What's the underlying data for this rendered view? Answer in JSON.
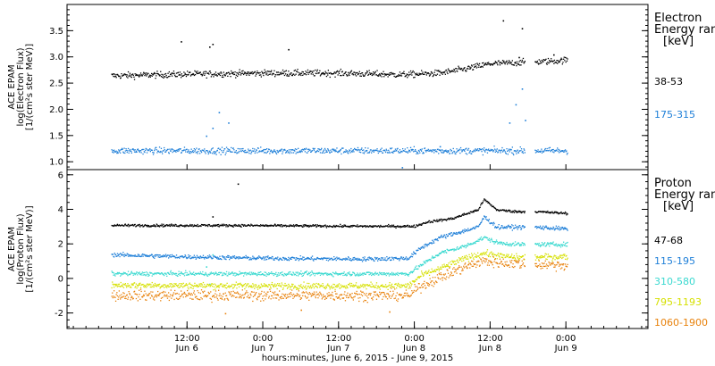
{
  "chart_data": [
    {
      "type": "scatter",
      "panel": "electron",
      "ylabel_lines": [
        "ACE EPAM",
        "log(Electron Flux)",
        "[1/(cm²s ster MeV)]"
      ],
      "ylim": [
        0.85,
        4.0
      ],
      "yticks": [
        1.0,
        1.5,
        2.0,
        2.5,
        3.0,
        3.5
      ],
      "ytick_labels": [
        "1.0",
        "1.5",
        "2.0",
        "2.5",
        "3.0",
        "3.5"
      ],
      "legend": {
        "title_lines": [
          "Electron",
          "Energy ranges",
          "[keV]"
        ],
        "placement": "right"
      },
      "gap_hours": [
        [
          65.5,
          67.0
        ]
      ],
      "series": [
        {
          "name": "38-53",
          "color": "#000000",
          "profile": [
            [
              0,
              2.65
            ],
            [
              12,
              2.68
            ],
            [
              24,
              2.7
            ],
            [
              36,
              2.7
            ],
            [
              46,
              2.67
            ],
            [
              52,
              2.7
            ],
            [
              56,
              2.78
            ],
            [
              60,
              2.88
            ],
            [
              64,
              2.9
            ],
            [
              70,
              2.93
            ],
            [
              72,
              2.95
            ]
          ],
          "noise": 0.05,
          "outliers": [
            [
              11,
              3.3
            ],
            [
              15.5,
              3.2
            ],
            [
              16,
              3.25
            ],
            [
              28,
              3.15
            ],
            [
              62,
              3.7
            ],
            [
              65,
              3.55
            ],
            [
              64.5,
              3.0
            ],
            [
              70,
              3.05
            ]
          ]
        },
        {
          "name": "175-315",
          "color": "#1e7fd8",
          "profile": [
            [
              0,
              1.22
            ],
            [
              24,
              1.22
            ],
            [
              48,
              1.22
            ],
            [
              72,
              1.22
            ]
          ],
          "noise": 0.05,
          "outliers": [
            [
              15,
              1.5
            ],
            [
              16,
              1.65
            ],
            [
              17,
              1.95
            ],
            [
              18.5,
              1.75
            ],
            [
              46,
              0.9
            ],
            [
              63,
              1.75
            ],
            [
              64,
              2.1
            ],
            [
              65,
              2.4
            ],
            [
              65.5,
              1.8
            ],
            [
              52,
              1.3
            ]
          ]
        }
      ]
    },
    {
      "type": "scatter",
      "panel": "proton",
      "ylabel_lines": [
        "ACE EPAM",
        "log(Proton Flux)",
        "[1/(cm²s ster MeV)]"
      ],
      "ylim": [
        -2.9,
        6.3
      ],
      "yticks": [
        -2,
        0,
        2,
        4,
        6
      ],
      "ytick_labels": [
        "-2",
        "0",
        "2",
        "4",
        "6"
      ],
      "legend": {
        "title_lines": [
          "Proton",
          "Energy ranges",
          "[keV]"
        ],
        "placement": "right"
      },
      "gap_hours": [
        [
          65.5,
          67.0
        ]
      ],
      "series": [
        {
          "name": "47-68",
          "color": "#000000",
          "profile": [
            [
              0,
              3.1
            ],
            [
              20,
              3.1
            ],
            [
              40,
              3.05
            ],
            [
              48,
              3.05
            ],
            [
              50,
              3.3
            ],
            [
              54,
              3.5
            ],
            [
              58,
              4.0
            ],
            [
              59,
              4.6
            ],
            [
              61,
              4.0
            ],
            [
              64,
              3.9
            ],
            [
              67,
              3.9
            ],
            [
              72,
              3.8
            ]
          ],
          "noise": 0.06,
          "outliers": [
            [
              20,
              5.5
            ],
            [
              16,
              3.6
            ]
          ]
        },
        {
          "name": "115-195",
          "color": "#1e7fd8",
          "profile": [
            [
              0,
              1.4
            ],
            [
              10,
              1.3
            ],
            [
              24,
              1.2
            ],
            [
              40,
              1.15
            ],
            [
              47,
              1.2
            ],
            [
              49,
              1.8
            ],
            [
              52,
              2.4
            ],
            [
              56,
              2.8
            ],
            [
              58,
              3.0
            ],
            [
              59,
              3.6
            ],
            [
              61,
              3.0
            ],
            [
              64,
              3.0
            ],
            [
              67,
              3.0
            ],
            [
              72,
              2.9
            ]
          ],
          "noise": 0.1,
          "outliers": []
        },
        {
          "name": "310-580",
          "color": "#3ad9d0",
          "profile": [
            [
              0,
              0.3
            ],
            [
              24,
              0.3
            ],
            [
              47,
              0.3
            ],
            [
              49,
              0.8
            ],
            [
              52,
              1.5
            ],
            [
              56,
              1.9
            ],
            [
              59,
              2.4
            ],
            [
              61,
              2.1
            ],
            [
              64,
              2.0
            ],
            [
              67,
              2.0
            ],
            [
              72,
              2.0
            ]
          ],
          "noise": 0.1,
          "outliers": [
            [
              15,
              0.7
            ],
            [
              16,
              1.4
            ],
            [
              15.5,
              -0.3
            ]
          ]
        },
        {
          "name": "795-1193",
          "color": "#d6e000",
          "profile": [
            [
              0,
              -0.35
            ],
            [
              24,
              -0.4
            ],
            [
              47,
              -0.4
            ],
            [
              49,
              0.2
            ],
            [
              52,
              0.6
            ],
            [
              56,
              1.2
            ],
            [
              59,
              1.5
            ],
            [
              61,
              1.35
            ],
            [
              64,
              1.25
            ],
            [
              67,
              1.25
            ],
            [
              72,
              1.3
            ]
          ],
          "noise": 0.15,
          "outliers": []
        },
        {
          "name": "1060-1900",
          "color": "#e8820c",
          "profile": [
            [
              0,
              -0.95
            ],
            [
              24,
              -0.95
            ],
            [
              47,
              -0.95
            ],
            [
              49,
              -0.4
            ],
            [
              52,
              0.1
            ],
            [
              56,
              0.7
            ],
            [
              59,
              1.05
            ],
            [
              61,
              0.95
            ],
            [
              64,
              0.9
            ],
            [
              67,
              0.85
            ],
            [
              72,
              0.8
            ]
          ],
          "noise": 0.25,
          "outliers": [
            [
              18,
              -2.0
            ],
            [
              30,
              -1.8
            ],
            [
              44,
              -1.9
            ]
          ]
        }
      ]
    }
  ],
  "x_axis": {
    "range_hours": [
      -7,
      85
    ],
    "tick_hours": [
      12,
      24,
      36,
      48,
      60,
      72
    ],
    "tick_labels": [
      "12:00",
      "0:00",
      "12:00",
      "0:00",
      "12:00",
      "0:00"
    ],
    "date_labels": [
      {
        "hour": 12,
        "text": "Jun 6"
      },
      {
        "hour": 24,
        "text": "Jun 7"
      },
      {
        "hour": 36,
        "text": "Jun 7"
      },
      {
        "hour": 48,
        "text": "Jun 8"
      },
      {
        "hour": 60,
        "text": "Jun 8"
      },
      {
        "hour": 72,
        "text": "Jun 9"
      }
    ],
    "minor_step_hours": 2,
    "title": "hours:minutes, June  6, 2015 - June  9, 2015"
  }
}
